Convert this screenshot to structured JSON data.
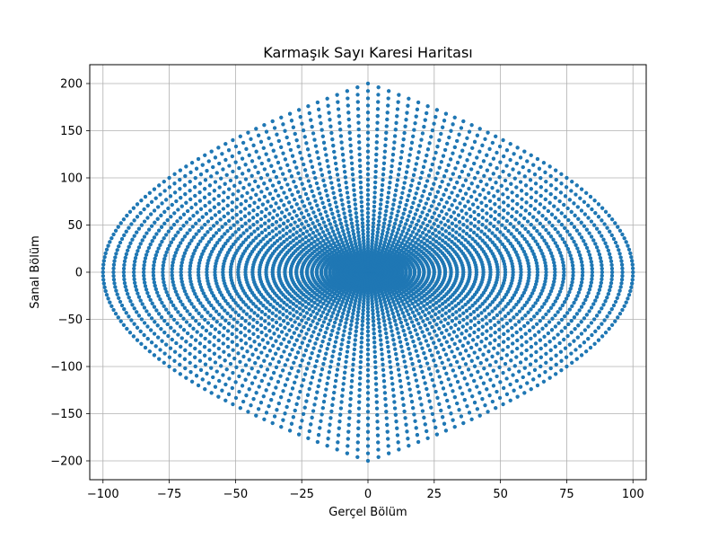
{
  "chart_data": {
    "type": "scatter",
    "title": "Karmaşık Sayı Karesi Haritası",
    "xlabel": "Gerçel Bölüm",
    "ylabel": "Sanal Bölüm",
    "xlim": [
      -105,
      105
    ],
    "ylim": [
      -220,
      220
    ],
    "xticks": [
      -100,
      -75,
      -50,
      -25,
      0,
      25,
      50,
      75,
      100
    ],
    "yticks": [
      -200,
      -150,
      -100,
      -50,
      0,
      50,
      100,
      150,
      200
    ],
    "xtick_labels": [
      "−100",
      "−75",
      "−50",
      "−25",
      "0",
      "25",
      "50",
      "75",
      "100"
    ],
    "ytick_labels": [
      "−200",
      "−150",
      "−100",
      "−50",
      "0",
      "50",
      "100",
      "150",
      "200"
    ],
    "grid": true,
    "marker_color": "#1f77b4",
    "series": [
      {
        "description_of_generation": "",
        "generator": {
          "kind": "complex-square",
          "real_range": [
            -10,
            10
          ],
          "imag_range": [
            -10,
            10
          ],
          "step": 0.2
        }
      }
    ]
  }
}
